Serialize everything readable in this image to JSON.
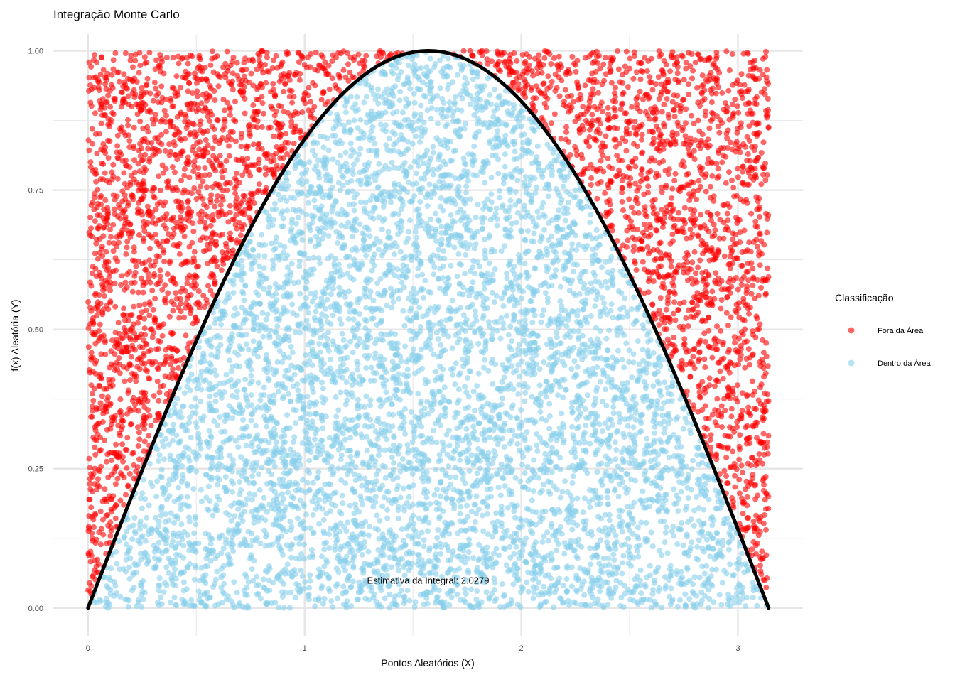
{
  "chart_data": {
    "type": "scatter",
    "title": "Integração Monte Carlo",
    "xlabel": "Pontos Aleatórios (X)",
    "ylabel": "f(x) Aleatória (Y)",
    "xlim": [
      -0.16,
      3.3
    ],
    "ylim": [
      -0.05,
      1.03
    ],
    "x_ticks": [
      0,
      1,
      2,
      3
    ],
    "x_tick_labels": [
      "0",
      "1",
      "2",
      "3"
    ],
    "y_ticks": [
      0.0,
      0.25,
      0.5,
      0.75,
      1.0
    ],
    "y_tick_labels": [
      "0.00",
      "0.25",
      "0.50",
      "0.75",
      "1.00"
    ],
    "grid": true,
    "curve": {
      "function": "sin(x)",
      "x_range": [
        0,
        3.14159
      ],
      "color": "#000000"
    },
    "points": {
      "distribution": "uniform",
      "x_range": [
        0,
        3.14159
      ],
      "y_range": [
        0,
        1
      ],
      "approx_count": 10000,
      "rule": "inside if y <= sin(x)"
    },
    "series": [
      {
        "name": "Fora da Área",
        "color": "#ff0000",
        "opacity": 0.6
      },
      {
        "name": "Dentro da Área",
        "color": "#87ceeb",
        "opacity": 0.6
      }
    ],
    "legend": {
      "title": "Classificação",
      "position": "right"
    },
    "annotation": {
      "text": "Estimativa da Integral: 2.0279",
      "x": 1.57,
      "y": 0.05
    }
  }
}
